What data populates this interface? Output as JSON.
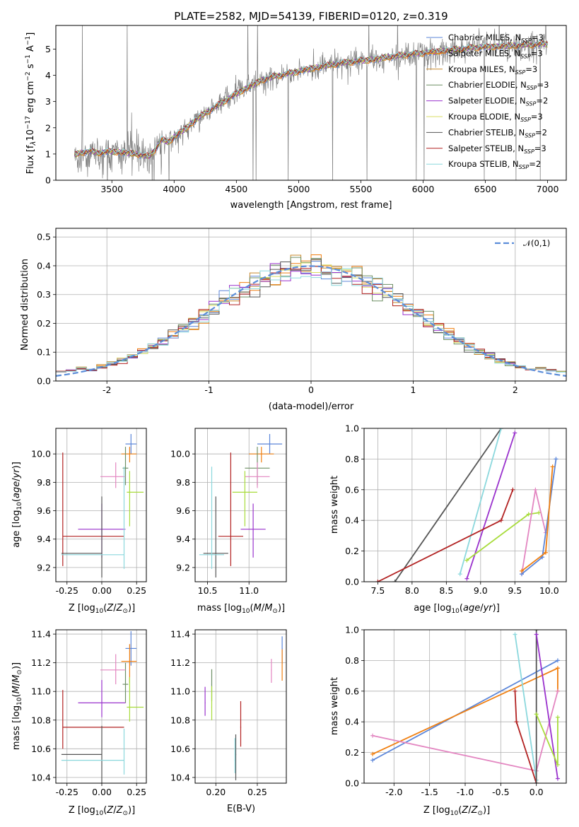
{
  "colors": {
    "Chabrier MILES": "#5b86d9",
    "Salpeter MILES": "#f07f10",
    "Kroupa MILES": "#c7882c",
    "Chabrier ELODIE": "#6e8f64",
    "Salpeter ELODIE": "#9a32cd",
    "Kroupa ELODIE": "#d8dd60",
    "Chabrier STELIB": "#555555",
    "Salpeter STELIB": "#b22222",
    "Kroupa STELIB": "#8bd8dd",
    "pink": "#e386c1",
    "lime": "#a8dc3b",
    "spectrum": "#808080",
    "normal": "#5b8dd9"
  },
  "chart_data": [
    {
      "id": "spectrum",
      "type": "line",
      "title": "PLATE=2582, MJD=54139, FIBERID=0120, z=0.319",
      "xlabel": "wavelength [Angstrom, rest frame]",
      "ylabel": "Flux [f_λ10^-17 erg cm^-2 s^-1 A^-1]",
      "xlim": [
        3050,
        7150
      ],
      "ylim": [
        0,
        5.9
      ],
      "xticks": [
        3500,
        4000,
        4500,
        5000,
        5500,
        6000,
        6500,
        7000
      ],
      "yticks": [
        0,
        1,
        2,
        3,
        4,
        5
      ],
      "legend_placement": "top-right",
      "legend": [
        "Chabrier MILES, N_SSP=3",
        "Salpeter MILES, N_SSP=3",
        "Kroupa MILES, N_SSP=3",
        "Chabrier ELODIE, N_SSP=3",
        "Salpeter ELODIE, N_SSP=2",
        "Kroupa ELODIE, N_SSP=3",
        "Chabrier STELIB, N_SSP=2",
        "Salpeter STELIB, N_SSP=3",
        "Kroupa STELIB, N_SSP=2"
      ],
      "model_x": [
        3200,
        3250,
        3300,
        3400,
        3500,
        3600,
        3700,
        3800,
        3850,
        3900,
        3950,
        4000,
        4100,
        4200,
        4300,
        4400,
        4500,
        4600,
        4700,
        4800,
        4900,
        5000,
        5200,
        5400,
        5600,
        5800,
        6000,
        6200,
        6400,
        6600,
        6800,
        7000
      ],
      "model_y": [
        0.95,
        1.05,
        1.1,
        1.05,
        1.1,
        1.05,
        1.0,
        0.9,
        1.2,
        1.55,
        1.45,
        1.65,
        2.0,
        2.4,
        2.7,
        3.0,
        3.3,
        3.55,
        3.8,
        3.95,
        4.05,
        4.15,
        4.35,
        4.5,
        4.6,
        4.75,
        4.85,
        4.95,
        5.05,
        5.1,
        5.15,
        5.2
      ]
    },
    {
      "id": "residuals",
      "type": "bar",
      "xlabel": "(data-model)/error",
      "ylabel": "Normed distribution",
      "xlim": [
        -2.5,
        2.5
      ],
      "ylim": [
        0,
        0.53
      ],
      "xticks": [
        -2,
        -1,
        0,
        1,
        2
      ],
      "yticks": [
        0.0,
        0.1,
        0.2,
        0.3,
        0.4,
        0.5
      ],
      "legend": [
        "𝒩(0,1)"
      ],
      "legend_placement": "top-right"
    },
    {
      "id": "age-vs-z",
      "type": "scatter",
      "xlabel": "Z [log10(Z/Z⊙)]",
      "ylabel": "age [log10(age/yr)]",
      "xlim": [
        -0.33,
        0.32
      ],
      "ylim": [
        9.1,
        10.18
      ],
      "xticks": [
        -0.25,
        0.0,
        0.25
      ],
      "yticks": [
        9.2,
        9.4,
        9.6,
        9.8,
        10.0
      ]
    },
    {
      "id": "age-vs-mass",
      "type": "scatter",
      "xlabel": "mass [log10(M/M⊙)]",
      "xlim": [
        10.35,
        11.45
      ],
      "ylim": [
        9.1,
        10.18
      ],
      "xticks": [
        10.5,
        11.0
      ],
      "yticks": [
        9.2,
        9.4,
        9.6,
        9.8,
        10.0
      ]
    },
    {
      "id": "weight-vs-age",
      "type": "line",
      "xlabel": "age [log10(age/yr)]",
      "ylabel": "mass weight",
      "xlim": [
        7.3,
        10.25
      ],
      "ylim": [
        0,
        1
      ],
      "xticks": [
        7.5,
        8.0,
        8.5,
        9.0,
        9.5,
        10.0
      ],
      "yticks": [
        0.0,
        0.2,
        0.4,
        0.6,
        0.8,
        1.0
      ]
    },
    {
      "id": "mass-vs-z",
      "type": "scatter",
      "xlabel": "Z [log10(Z/Z⊙)]",
      "ylabel": "mass [log10(M/M⊙)]",
      "xlim": [
        -0.33,
        0.32
      ],
      "ylim": [
        10.36,
        11.43
      ],
      "xticks": [
        -0.25,
        0.0,
        0.25
      ],
      "yticks": [
        10.4,
        10.6,
        10.8,
        11.0,
        11.2,
        11.4
      ]
    },
    {
      "id": "mass-vs-ebv",
      "type": "scatter",
      "xlabel": "E(B-V)",
      "xlim": [
        0.175,
        0.285
      ],
      "ylim": [
        10.36,
        11.43
      ],
      "xticks": [
        0.2,
        0.25
      ],
      "yticks": [
        10.4,
        10.6,
        10.8,
        11.0,
        11.2,
        11.4
      ]
    },
    {
      "id": "weight-vs-z",
      "type": "line",
      "xlabel": "Z [log10(Z/Z⊙)]",
      "ylabel": "mass weight",
      "xlim": [
        -2.42,
        0.42
      ],
      "ylim": [
        0,
        1
      ],
      "xticks": [
        -2.0,
        -1.5,
        -1.0,
        -0.5,
        0.0
      ],
      "yticks": [
        0.0,
        0.2,
        0.4,
        0.6,
        0.8,
        1.0
      ]
    }
  ]
}
